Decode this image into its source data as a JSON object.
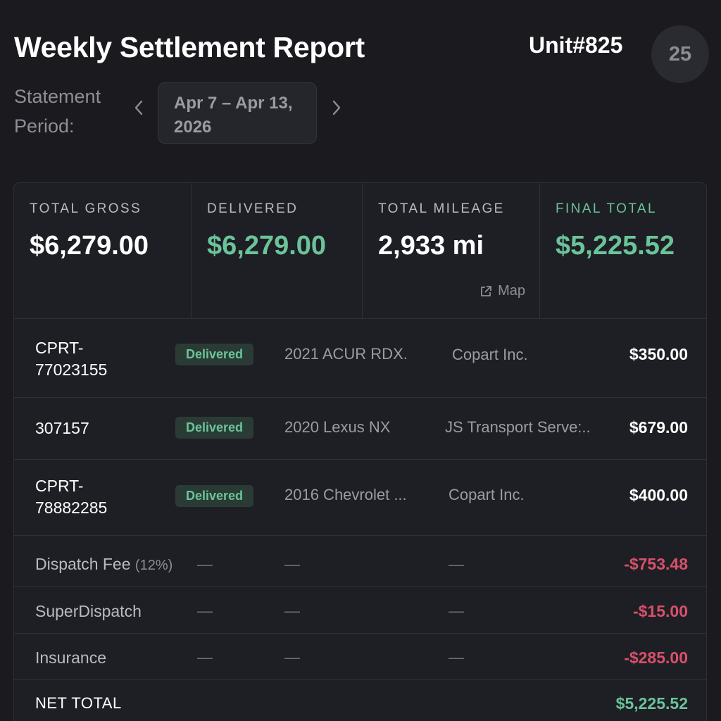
{
  "header": {
    "title": "Weekly Settlement Report",
    "unit": "Unit#825",
    "avatar": "25"
  },
  "period": {
    "label": "Statement Period:",
    "range": "Apr 7 – Apr 13, 2026",
    "prev_icon": "chevron-left-icon",
    "next_icon": "chevron-right-icon"
  },
  "stats": {
    "total_gross": {
      "label": "TOTAL GROSS",
      "value": "$6,279.00"
    },
    "delivered": {
      "label": "DELIVERED",
      "value": "$6,279.00"
    },
    "total_mileage": {
      "label": "TOTAL MILEAGE",
      "value": "2,933 mi",
      "link": "Map"
    },
    "final_total": {
      "label": "FINAL TOTAL",
      "value": "$5,225.52"
    }
  },
  "loads": [
    {
      "id": "CPRT-\n77023155",
      "status": "Delivered",
      "vehicle": "2021 ACUR RDX.",
      "shipper": "Copart Inc.",
      "amount": "$350.00"
    },
    {
      "id": "307157",
      "status": "Delivered",
      "vehicle": "2020 Lexus NX",
      "shipper": "JS Transport Serve:..",
      "amount": "$679.00"
    },
    {
      "id": "CPRT-\n78882285",
      "status": "Delivered",
      "vehicle": "2016 Chevrolet ...",
      "shipper": "Copart Inc.",
      "amount": "$400.00"
    }
  ],
  "deductions": [
    {
      "label": "Dispatch Fee",
      "note": "(12%)",
      "dash": "—",
      "amount": "-$753.48"
    },
    {
      "label": "SuperDispatch",
      "note": "",
      "dash": "—",
      "amount": "-$15.00"
    },
    {
      "label": "Insurance",
      "note": "",
      "dash": "—",
      "amount": "-$285.00"
    }
  ],
  "net": {
    "label": "NET TOTAL",
    "value": "$5,225.52"
  },
  "colors": {
    "background": "#1a1a1f",
    "positive": "#6bc39a",
    "negative": "#d9506b",
    "badge_bg": "#2a3b35"
  }
}
